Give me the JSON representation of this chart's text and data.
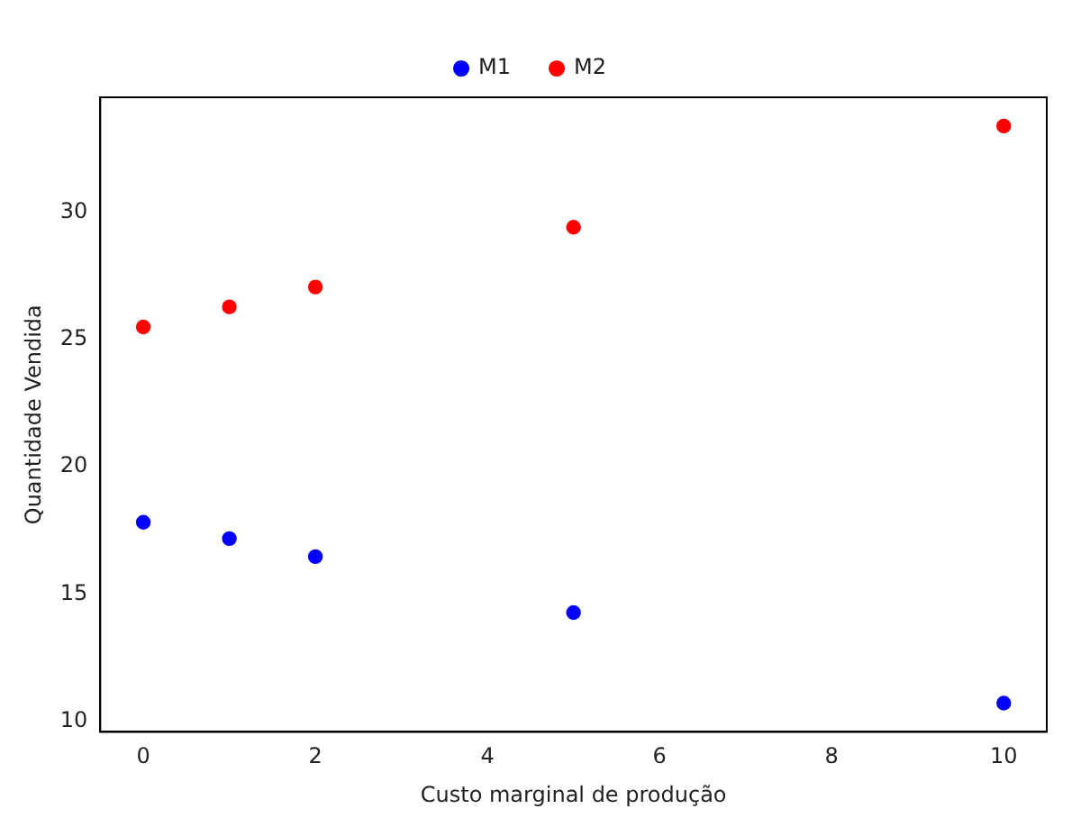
{
  "chart_data": {
    "type": "scatter",
    "xlabel": "Custo marginal de produção",
    "ylabel": "Quantidade Vendida",
    "x": [
      0,
      1,
      2,
      5,
      10
    ],
    "series": [
      {
        "name": "M1",
        "color": "#0000ff",
        "values": [
          17.82,
          17.18,
          16.47,
          14.27,
          10.71
        ]
      },
      {
        "name": "M2",
        "color": "#ff0000",
        "values": [
          25.5,
          26.29,
          27.07,
          29.42,
          33.4
        ]
      }
    ],
    "xlim": [
      -0.5,
      10.5
    ],
    "xticks": [
      0,
      2,
      4,
      6,
      8,
      10
    ],
    "ylim": [
      9.58,
      34.53
    ],
    "yticks": [
      10,
      15,
      20,
      25,
      30
    ],
    "grid": false,
    "legend": "top",
    "marker": "circle"
  }
}
